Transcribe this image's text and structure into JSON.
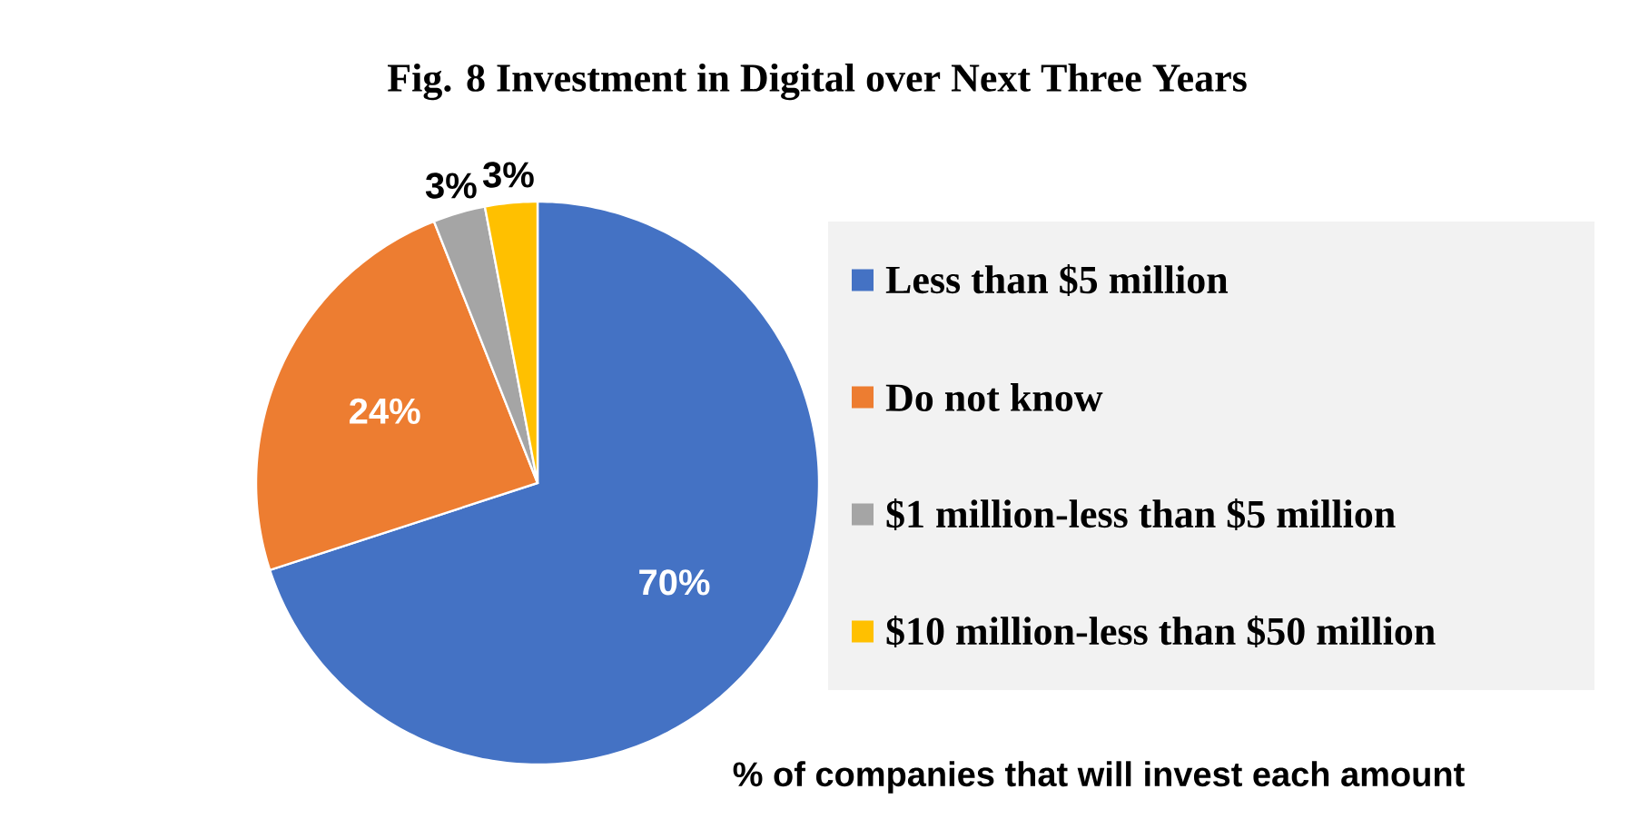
{
  "chart_data": {
    "type": "pie",
    "title": "Fig. 8 Investment in Digital over Next Three Years",
    "categories": [
      "Less than $5 million",
      "Do not know",
      "$1 million-less than $5 million",
      "$10 million-less than $50 million"
    ],
    "values": [
      70,
      24,
      3,
      3
    ],
    "colors": [
      "#4472c4",
      "#ed7d31",
      "#a5a5a5",
      "#ffc000"
    ],
    "value_labels": [
      "70%",
      "24%",
      "3%",
      "3%"
    ],
    "legend": "right",
    "annotations": [
      "% of companies that will invest each amount"
    ]
  }
}
